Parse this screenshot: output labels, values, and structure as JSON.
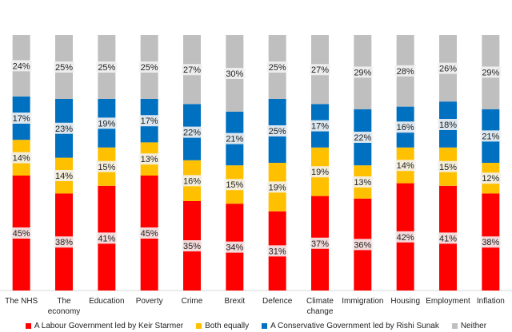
{
  "colors": {
    "labour": "#ff0000",
    "both": "#ffc000",
    "conservative": "#0070c0",
    "neither": "#bfbfbf",
    "label_bg": "#f2f2f2"
  },
  "chart_data": {
    "type": "bar",
    "stacked": true,
    "categories": [
      [
        "The NHS"
      ],
      [
        "The",
        "economy"
      ],
      [
        "Education"
      ],
      [
        "Poverty"
      ],
      [
        "Crime"
      ],
      [
        "Brexit"
      ],
      [
        "Defence"
      ],
      [
        "Climate",
        "change"
      ],
      [
        "Immigration"
      ],
      [
        "Housing"
      ],
      [
        "Employment"
      ],
      [
        "Inflation"
      ]
    ],
    "series": [
      {
        "name": "A Labour Government led by Keir Starmer",
        "color_key": "labour",
        "values": [
          45,
          38,
          41,
          45,
          35,
          34,
          31,
          37,
          36,
          42,
          41,
          38
        ]
      },
      {
        "name": "Both equally",
        "color_key": "both",
        "values": [
          14,
          14,
          15,
          13,
          16,
          15,
          19,
          19,
          13,
          14,
          15,
          12
        ]
      },
      {
        "name": "A Conservative Government led by Rishi Sunak",
        "color_key": "conservative",
        "values": [
          17,
          23,
          19,
          17,
          22,
          21,
          25,
          17,
          22,
          16,
          18,
          21
        ]
      },
      {
        "name": "Neither",
        "color_key": "neither",
        "values": [
          24,
          25,
          25,
          25,
          27,
          30,
          25,
          27,
          29,
          28,
          26,
          29
        ]
      }
    ],
    "value_suffix": "%",
    "ylim": [
      0,
      100
    ],
    "grid": false,
    "legend_position": "bottom"
  }
}
